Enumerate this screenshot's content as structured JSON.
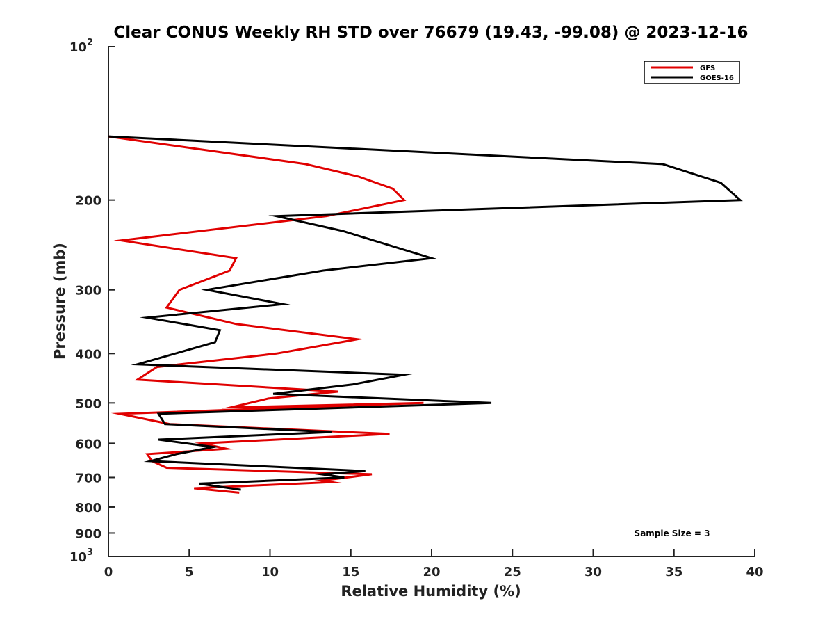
{
  "chart_data": {
    "type": "line",
    "title": "Clear CONUS Weekly RH STD over 76679 (19.43, -99.08) @ 2023-12-16",
    "xlabel": "Relative Humidity (%)",
    "ylabel": "Pressure (mb)",
    "xlim": [
      0,
      40
    ],
    "ylim": [
      100,
      1000
    ],
    "y_scale": "log",
    "y_reversed": true,
    "grid": false,
    "legend_position": "top-right",
    "x_ticks": [
      "0",
      "5",
      "10",
      "15",
      "20",
      "25",
      "30",
      "35",
      "40"
    ],
    "y_ticks": [
      {
        "value": 100,
        "label": "10",
        "sup": "2"
      },
      {
        "value": 200,
        "label": "200"
      },
      {
        "value": 300,
        "label": "300"
      },
      {
        "value": 400,
        "label": "400"
      },
      {
        "value": 500,
        "label": "500"
      },
      {
        "value": 600,
        "label": "600"
      },
      {
        "value": 700,
        "label": "700"
      },
      {
        "value": 800,
        "label": "800"
      },
      {
        "value": 900,
        "label": "900"
      },
      {
        "value": 1000,
        "label": "10",
        "sup": "3"
      }
    ],
    "series": [
      {
        "name": "GFS",
        "color": "#e00000",
        "points": [
          [
            0,
            150
          ],
          [
            12.2,
            170
          ],
          [
            15.5,
            180
          ],
          [
            17.6,
            190
          ],
          [
            18.3,
            200
          ],
          [
            13.5,
            215
          ],
          [
            0.8,
            240
          ],
          [
            7.9,
            260
          ],
          [
            7.5,
            275
          ],
          [
            4.4,
            300
          ],
          [
            3.6,
            325
          ],
          [
            7.9,
            350
          ],
          [
            15.4,
            375
          ],
          [
            10.4,
            400
          ],
          [
            3.0,
            425
          ],
          [
            1.8,
            450
          ],
          [
            14.2,
            475
          ],
          [
            9.9,
            490
          ],
          [
            7.6,
            510
          ],
          [
            19.5,
            500
          ],
          [
            0.7,
            525
          ],
          [
            3.8,
            550
          ],
          [
            17.4,
            575
          ],
          [
            5.8,
            600
          ],
          [
            7.3,
            615
          ],
          [
            2.4,
            630
          ],
          [
            2.7,
            650
          ],
          [
            3.6,
            670
          ],
          [
            16.3,
            690
          ],
          [
            13.2,
            710
          ],
          [
            13.8,
            715
          ],
          [
            5.3,
            735
          ],
          [
            8.1,
            750
          ]
        ]
      },
      {
        "name": "GOES-16",
        "color": "#000000",
        "points": [
          [
            0,
            150
          ],
          [
            34.3,
            170
          ],
          [
            37.9,
            185
          ],
          [
            39.1,
            200
          ],
          [
            10.4,
            215
          ],
          [
            14.5,
            230
          ],
          [
            20.0,
            260
          ],
          [
            13.3,
            275
          ],
          [
            6.1,
            300
          ],
          [
            10.8,
            320
          ],
          [
            2.4,
            340
          ],
          [
            6.9,
            360
          ],
          [
            6.6,
            380
          ],
          [
            1.8,
            420
          ],
          [
            18.3,
            440
          ],
          [
            15.1,
            460
          ],
          [
            10.2,
            480
          ],
          [
            23.7,
            500
          ],
          [
            3.1,
            525
          ],
          [
            3.5,
            550
          ],
          [
            13.8,
            570
          ],
          [
            3.1,
            590
          ],
          [
            6.5,
            610
          ],
          [
            4.2,
            630
          ],
          [
            2.6,
            650
          ],
          [
            15.9,
            680
          ],
          [
            13.2,
            690
          ],
          [
            14.6,
            700
          ],
          [
            5.6,
            720
          ],
          [
            8.2,
            740
          ]
        ]
      }
    ],
    "legend": [
      "GFS",
      "GOES-16"
    ],
    "annotation": "Sample Size = 3"
  }
}
